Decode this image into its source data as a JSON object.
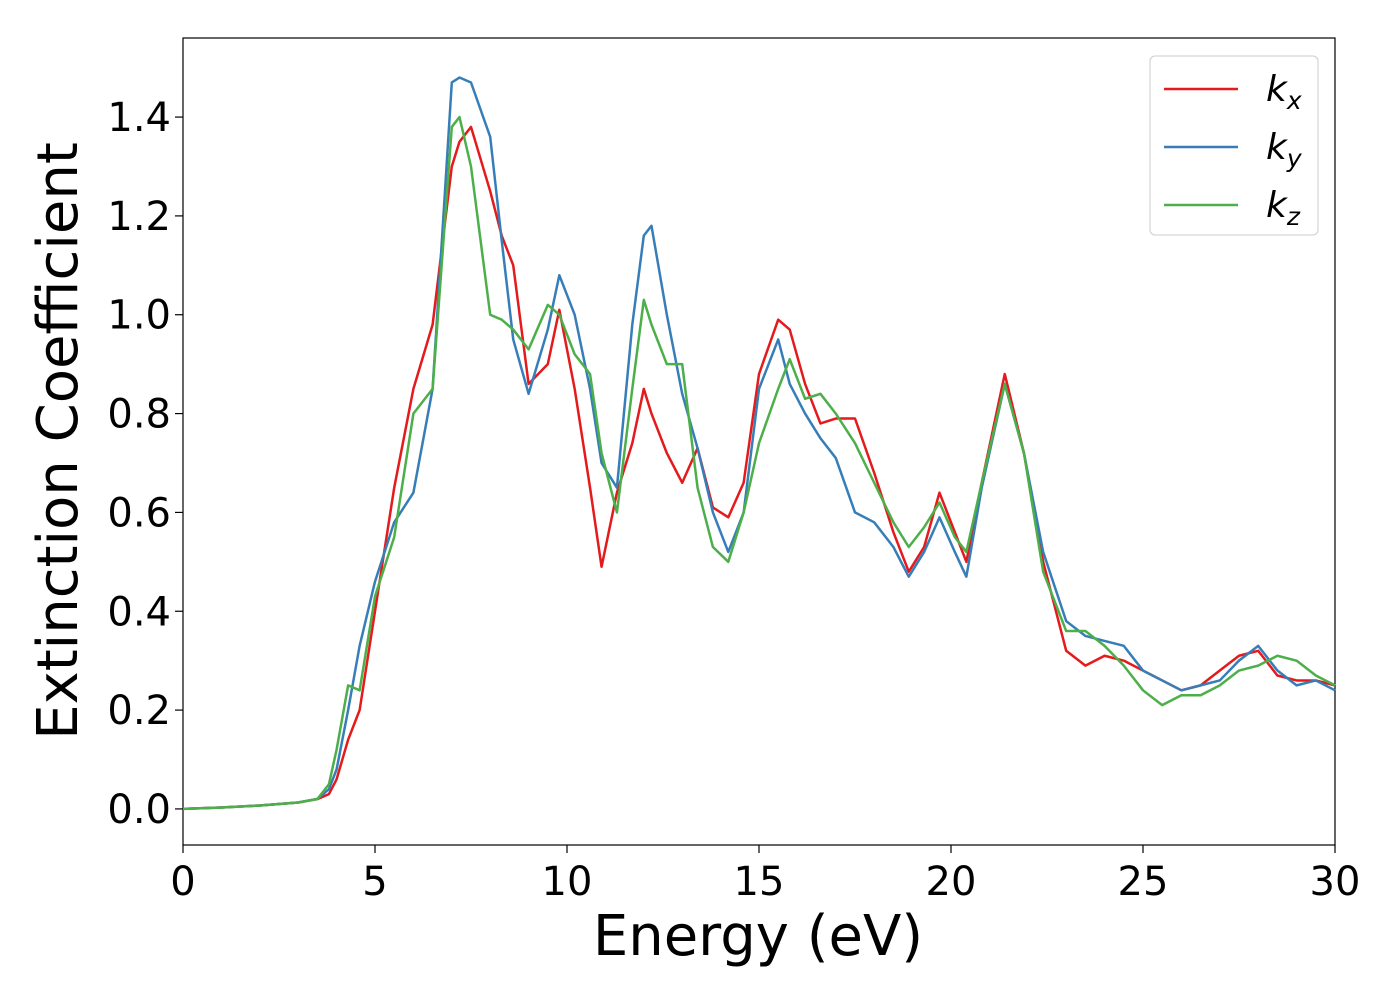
{
  "chart_data": {
    "type": "line",
    "xlabel": "Energy (eV)",
    "ylabel": "Extinction Coefficient",
    "x": [
      0,
      1,
      2,
      3,
      3.5,
      3.8,
      4,
      4.3,
      4.6,
      5,
      5.5,
      6,
      6.5,
      7,
      7.2,
      7.5,
      8,
      8.3,
      8.6,
      9,
      9.5,
      9.8,
      10.2,
      10.6,
      10.9,
      11.3,
      11.7,
      12,
      12.2,
      12.6,
      13,
      13.4,
      13.8,
      14.2,
      14.6,
      15,
      15.5,
      15.8,
      16.2,
      16.6,
      17,
      17.5,
      18,
      18.5,
      18.9,
      19.3,
      19.7,
      20.1,
      20.4,
      20.8,
      21.4,
      21.9,
      22.4,
      23,
      23.5,
      24,
      24.5,
      25,
      25.5,
      26,
      26.5,
      27,
      27.5,
      28,
      28.5,
      29,
      29.5,
      30
    ],
    "series": [
      {
        "name": "kx",
        "color": "#e41a1c",
        "values": [
          0,
          0.003,
          0.007,
          0.013,
          0.02,
          0.03,
          0.06,
          0.14,
          0.2,
          0.4,
          0.65,
          0.85,
          0.98,
          1.3,
          1.35,
          1.38,
          1.25,
          1.16,
          1.1,
          0.86,
          0.9,
          1.01,
          0.85,
          0.65,
          0.49,
          0.64,
          0.74,
          0.85,
          0.8,
          0.72,
          0.66,
          0.73,
          0.61,
          0.59,
          0.66,
          0.88,
          0.99,
          0.97,
          0.86,
          0.78,
          0.79,
          0.79,
          0.68,
          0.56,
          0.48,
          0.53,
          0.64,
          0.56,
          0.5,
          0.66,
          0.88,
          0.72,
          0.5,
          0.32,
          0.29,
          0.31,
          0.3,
          0.28,
          0.26,
          0.24,
          0.25,
          0.28,
          0.31,
          0.32,
          0.27,
          0.26,
          0.26,
          0.25
        ]
      },
      {
        "name": "ky",
        "color": "#377eb8",
        "values": [
          0,
          0.003,
          0.007,
          0.013,
          0.02,
          0.04,
          0.08,
          0.2,
          0.33,
          0.46,
          0.58,
          0.64,
          0.85,
          1.47,
          1.48,
          1.47,
          1.36,
          1.15,
          0.95,
          0.84,
          0.97,
          1.08,
          1.0,
          0.85,
          0.7,
          0.65,
          0.98,
          1.16,
          1.18,
          1.0,
          0.84,
          0.73,
          0.6,
          0.52,
          0.6,
          0.85,
          0.95,
          0.86,
          0.8,
          0.75,
          0.71,
          0.6,
          0.58,
          0.53,
          0.47,
          0.52,
          0.59,
          0.52,
          0.47,
          0.65,
          0.86,
          0.72,
          0.52,
          0.38,
          0.35,
          0.34,
          0.33,
          0.28,
          0.26,
          0.24,
          0.25,
          0.26,
          0.3,
          0.33,
          0.28,
          0.25,
          0.26,
          0.24
        ]
      },
      {
        "name": "kz",
        "color": "#4daf4a",
        "values": [
          0,
          0.003,
          0.007,
          0.013,
          0.02,
          0.05,
          0.12,
          0.25,
          0.24,
          0.43,
          0.55,
          0.8,
          0.85,
          1.38,
          1.4,
          1.3,
          1.0,
          0.99,
          0.97,
          0.93,
          1.02,
          1.0,
          0.92,
          0.88,
          0.72,
          0.6,
          0.85,
          1.03,
          0.98,
          0.9,
          0.9,
          0.65,
          0.53,
          0.5,
          0.6,
          0.74,
          0.85,
          0.91,
          0.83,
          0.84,
          0.8,
          0.74,
          0.66,
          0.58,
          0.53,
          0.57,
          0.62,
          0.55,
          0.52,
          0.66,
          0.86,
          0.72,
          0.48,
          0.36,
          0.36,
          0.33,
          0.29,
          0.24,
          0.21,
          0.23,
          0.23,
          0.25,
          0.28,
          0.29,
          0.31,
          0.3,
          0.27,
          0.25
        ]
      }
    ],
    "xlim": [
      0,
      30
    ],
    "xticks": [
      0,
      5,
      10,
      15,
      20,
      25,
      30
    ],
    "ylim": [
      -0.073,
      1.56
    ],
    "yticks": [
      {
        "value": 0,
        "label": "0.0"
      },
      0.2,
      0.4,
      0.6,
      0.8,
      {
        "value": 1,
        "label": "1.0"
      },
      1.2,
      1.4
    ],
    "legend": "upper right",
    "grid": false
  }
}
